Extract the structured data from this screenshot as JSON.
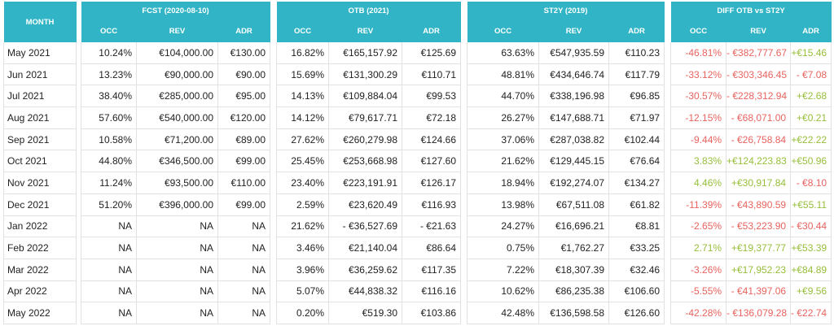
{
  "colors": {
    "header_bg": "#31b5c6",
    "negative": "#e8635e",
    "positive": "#97be3a"
  },
  "header": {
    "month": "MONTH",
    "groups": [
      "FCST (2020-08-10)",
      "OTB (2021)",
      "ST2Y (2019)",
      "DIFF OTB vs ST2Y"
    ],
    "subs": [
      "OCC",
      "REV",
      "ADR"
    ]
  },
  "rows": [
    {
      "month": "May 2021",
      "fcst": [
        "10.24%",
        "€104,000.00",
        "€130.00"
      ],
      "otb": [
        "16.82%",
        "€165,157.92",
        "€125.69"
      ],
      "st2y": [
        "63.63%",
        "€547,935.59",
        "€110.23"
      ],
      "diff": [
        "-46.81%",
        "- €382,777.67",
        "+€15.46"
      ],
      "sign": [
        "neg",
        "neg",
        "pos"
      ]
    },
    {
      "month": "Jun 2021",
      "fcst": [
        "13.23%",
        "€90,000.00",
        "€90.00"
      ],
      "otb": [
        "15.69%",
        "€131,300.29",
        "€110.71"
      ],
      "st2y": [
        "48.81%",
        "€434,646.74",
        "€117.79"
      ],
      "diff": [
        "-33.12%",
        "- €303,346.45",
        "- €7.08"
      ],
      "sign": [
        "neg",
        "neg",
        "neg"
      ]
    },
    {
      "month": "Jul 2021",
      "fcst": [
        "38.40%",
        "€285,000.00",
        "€95.00"
      ],
      "otb": [
        "14.13%",
        "€109,884.04",
        "€99.53"
      ],
      "st2y": [
        "44.70%",
        "€338,196.98",
        "€96.85"
      ],
      "diff": [
        "-30.57%",
        "- €228,312.94",
        "+€2.68"
      ],
      "sign": [
        "neg",
        "neg",
        "pos"
      ]
    },
    {
      "month": "Aug 2021",
      "fcst": [
        "57.60%",
        "€540,000.00",
        "€120.00"
      ],
      "otb": [
        "14.12%",
        "€79,617.71",
        "€72.18"
      ],
      "st2y": [
        "26.27%",
        "€147,688.71",
        "€71.97"
      ],
      "diff": [
        "-12.15%",
        "- €68,071.00",
        "+€0.21"
      ],
      "sign": [
        "neg",
        "neg",
        "pos"
      ]
    },
    {
      "month": "Sep 2021",
      "fcst": [
        "10.58%",
        "€71,200.00",
        "€89.00"
      ],
      "otb": [
        "27.62%",
        "€260,279.98",
        "€124.66"
      ],
      "st2y": [
        "37.06%",
        "€287,038.82",
        "€102.44"
      ],
      "diff": [
        "-9.44%",
        "- €26,758.84",
        "+€22.22"
      ],
      "sign": [
        "neg",
        "neg",
        "pos"
      ]
    },
    {
      "month": "Oct 2021",
      "fcst": [
        "44.80%",
        "€346,500.00",
        "€99.00"
      ],
      "otb": [
        "25.45%",
        "€253,668.98",
        "€127.60"
      ],
      "st2y": [
        "21.62%",
        "€129,445.15",
        "€76.64"
      ],
      "diff": [
        "3.83%",
        "+€124,223.83",
        "+€50.96"
      ],
      "sign": [
        "pos",
        "pos",
        "pos"
      ]
    },
    {
      "month": "Nov 2021",
      "fcst": [
        "11.24%",
        "€93,500.00",
        "€110.00"
      ],
      "otb": [
        "23.40%",
        "€223,191.91",
        "€126.17"
      ],
      "st2y": [
        "18.94%",
        "€192,274.07",
        "€134.27"
      ],
      "diff": [
        "4.46%",
        "+€30,917.84",
        "- €8.10"
      ],
      "sign": [
        "pos",
        "pos",
        "neg"
      ]
    },
    {
      "month": "Dec 2021",
      "fcst": [
        "51.20%",
        "€396,000.00",
        "€99.00"
      ],
      "otb": [
        "2.59%",
        "€23,620.49",
        "€116.93"
      ],
      "st2y": [
        "13.98%",
        "€67,511.08",
        "€61.82"
      ],
      "diff": [
        "-11.39%",
        "- €43,890.59",
        "+€55.11"
      ],
      "sign": [
        "neg",
        "neg",
        "pos"
      ]
    },
    {
      "month": "Jan 2022",
      "fcst": [
        "NA",
        "NA",
        "NA"
      ],
      "otb": [
        "21.62%",
        "- €36,527.69",
        "- €21.63"
      ],
      "st2y": [
        "24.27%",
        "€16,696.21",
        "€8.81"
      ],
      "diff": [
        "-2.65%",
        "- €53,223.90",
        "- €30.44"
      ],
      "sign": [
        "neg",
        "neg",
        "neg"
      ]
    },
    {
      "month": "Feb 2022",
      "fcst": [
        "NA",
        "NA",
        "NA"
      ],
      "otb": [
        "3.46%",
        "€21,140.04",
        "€86.64"
      ],
      "st2y": [
        "0.75%",
        "€1,762.27",
        "€33.25"
      ],
      "diff": [
        "2.71%",
        "+€19,377.77",
        "+€53.39"
      ],
      "sign": [
        "pos",
        "pos",
        "pos"
      ]
    },
    {
      "month": "Mar 2022",
      "fcst": [
        "NA",
        "NA",
        "NA"
      ],
      "otb": [
        "3.96%",
        "€36,259.62",
        "€117.35"
      ],
      "st2y": [
        "7.22%",
        "€18,307.39",
        "€32.46"
      ],
      "diff": [
        "-3.26%",
        "+€17,952.23",
        "+€84.89"
      ],
      "sign": [
        "neg",
        "pos",
        "pos"
      ]
    },
    {
      "month": "Apr 2022",
      "fcst": [
        "NA",
        "NA",
        "NA"
      ],
      "otb": [
        "5.07%",
        "€44,838.32",
        "€116.16"
      ],
      "st2y": [
        "10.62%",
        "€86,235.38",
        "€106.60"
      ],
      "diff": [
        "-5.55%",
        "- €41,397.06",
        "+€9.56"
      ],
      "sign": [
        "neg",
        "neg",
        "pos"
      ]
    },
    {
      "month": "May 2022",
      "fcst": [
        "NA",
        "NA",
        "NA"
      ],
      "otb": [
        "0.20%",
        "€519.30",
        "€103.86"
      ],
      "st2y": [
        "42.48%",
        "€136,598.58",
        "€126.60"
      ],
      "diff": [
        "-42.28%",
        "- €136,079.28",
        "- €22.74"
      ],
      "sign": [
        "neg",
        "neg",
        "neg"
      ]
    }
  ]
}
